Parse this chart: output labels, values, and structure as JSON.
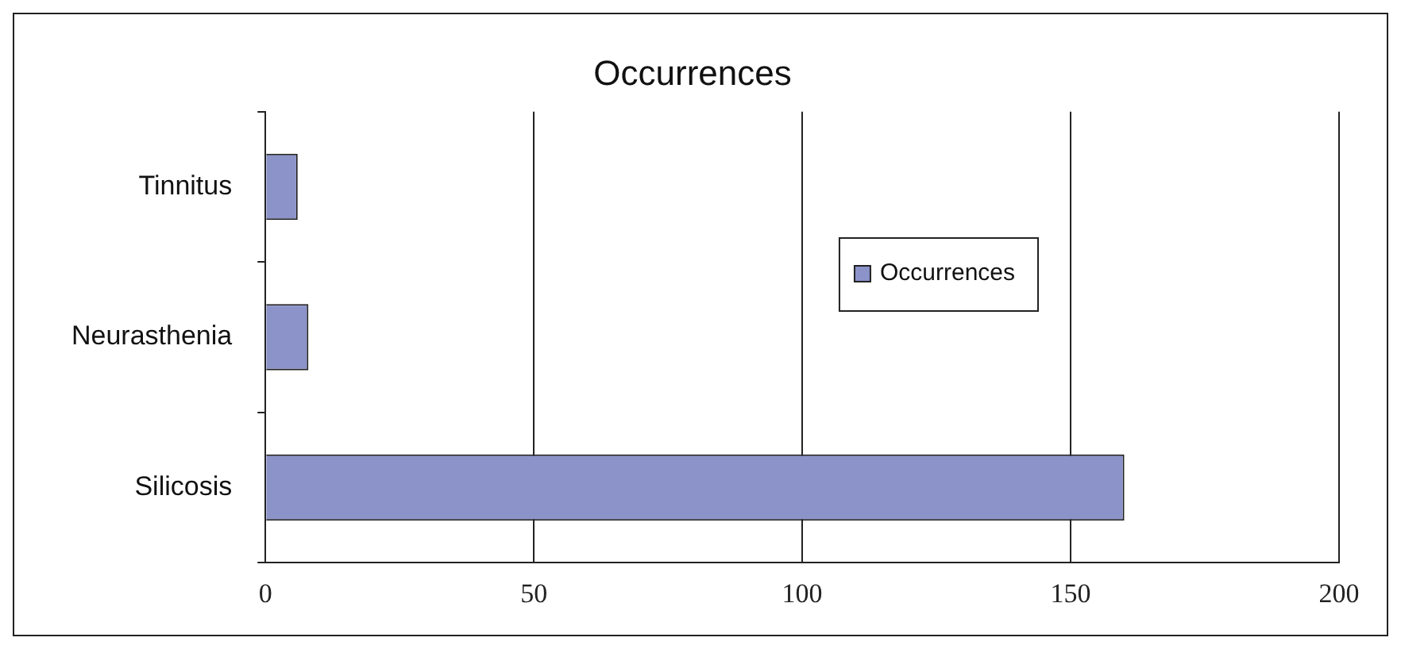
{
  "chart_data": {
    "type": "bar",
    "orientation": "horizontal",
    "title": "Occurrences",
    "categories": [
      "Tinnitus",
      "Neurasthenia",
      "Silicosis"
    ],
    "series": [
      {
        "name": "Occurrences",
        "color": "#8b93c9",
        "values": [
          6,
          8,
          160
        ]
      }
    ],
    "xlim": [
      0,
      200
    ],
    "xticks": [
      0,
      50,
      100,
      150,
      200
    ],
    "grid": "x",
    "legend": "right"
  }
}
